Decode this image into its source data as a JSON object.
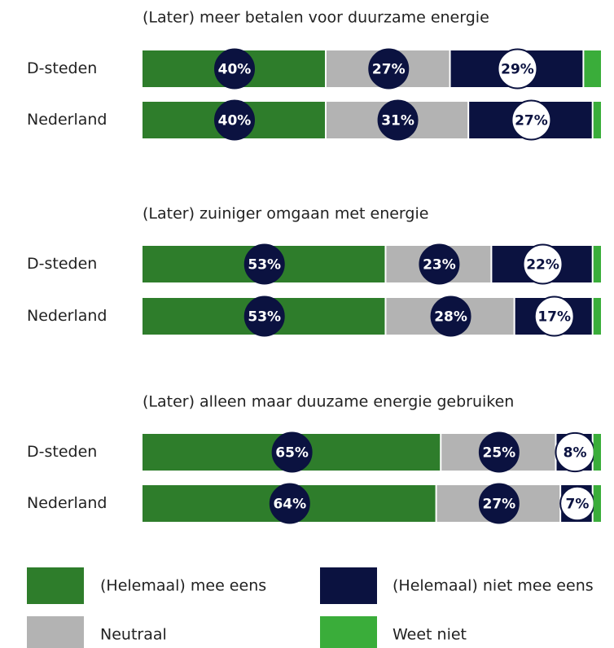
{
  "chart_data": {
    "type": "bar",
    "orientation": "horizontal",
    "stacked": true,
    "xlim": [
      0,
      100
    ],
    "series": [
      {
        "name": "(Helemaal) mee eens",
        "color": "#2e7d2b"
      },
      {
        "name": "Neutraal",
        "color": "#b3b3b3"
      },
      {
        "name": "(Helemaal) niet mee eens",
        "color": "#0b1240"
      },
      {
        "name": "Weet niet",
        "color": "#3aad3a"
      }
    ],
    "panels": [
      {
        "title": "(Later) meer betalen voor duurzame energie",
        "categories": [
          "D-steden",
          "Nederland"
        ],
        "values": [
          [
            40,
            27,
            29,
            4
          ],
          [
            40,
            31,
            27,
            2
          ]
        ],
        "value_labels": [
          [
            "40%",
            "27%",
            "29%",
            null
          ],
          [
            "40%",
            "31%",
            "27%",
            null
          ]
        ]
      },
      {
        "title": "(Later) zuiniger omgaan met energie",
        "categories": [
          "D-steden",
          "Nederland"
        ],
        "values": [
          [
            53,
            23,
            22,
            2
          ],
          [
            53,
            28,
            17,
            2
          ]
        ],
        "value_labels": [
          [
            "53%",
            "23%",
            "22%",
            null
          ],
          [
            "53%",
            "28%",
            "17%",
            null
          ]
        ]
      },
      {
        "title": "(Later) alleen maar duuzame energie gebruiken",
        "categories": [
          "D-steden",
          "Nederland"
        ],
        "values": [
          [
            65,
            25,
            8,
            2
          ],
          [
            64,
            27,
            7,
            2
          ]
        ],
        "value_labels": [
          [
            "65%",
            "25%",
            "8%",
            null
          ],
          [
            "64%",
            "27%",
            "7%",
            null
          ]
        ]
      }
    ]
  }
}
